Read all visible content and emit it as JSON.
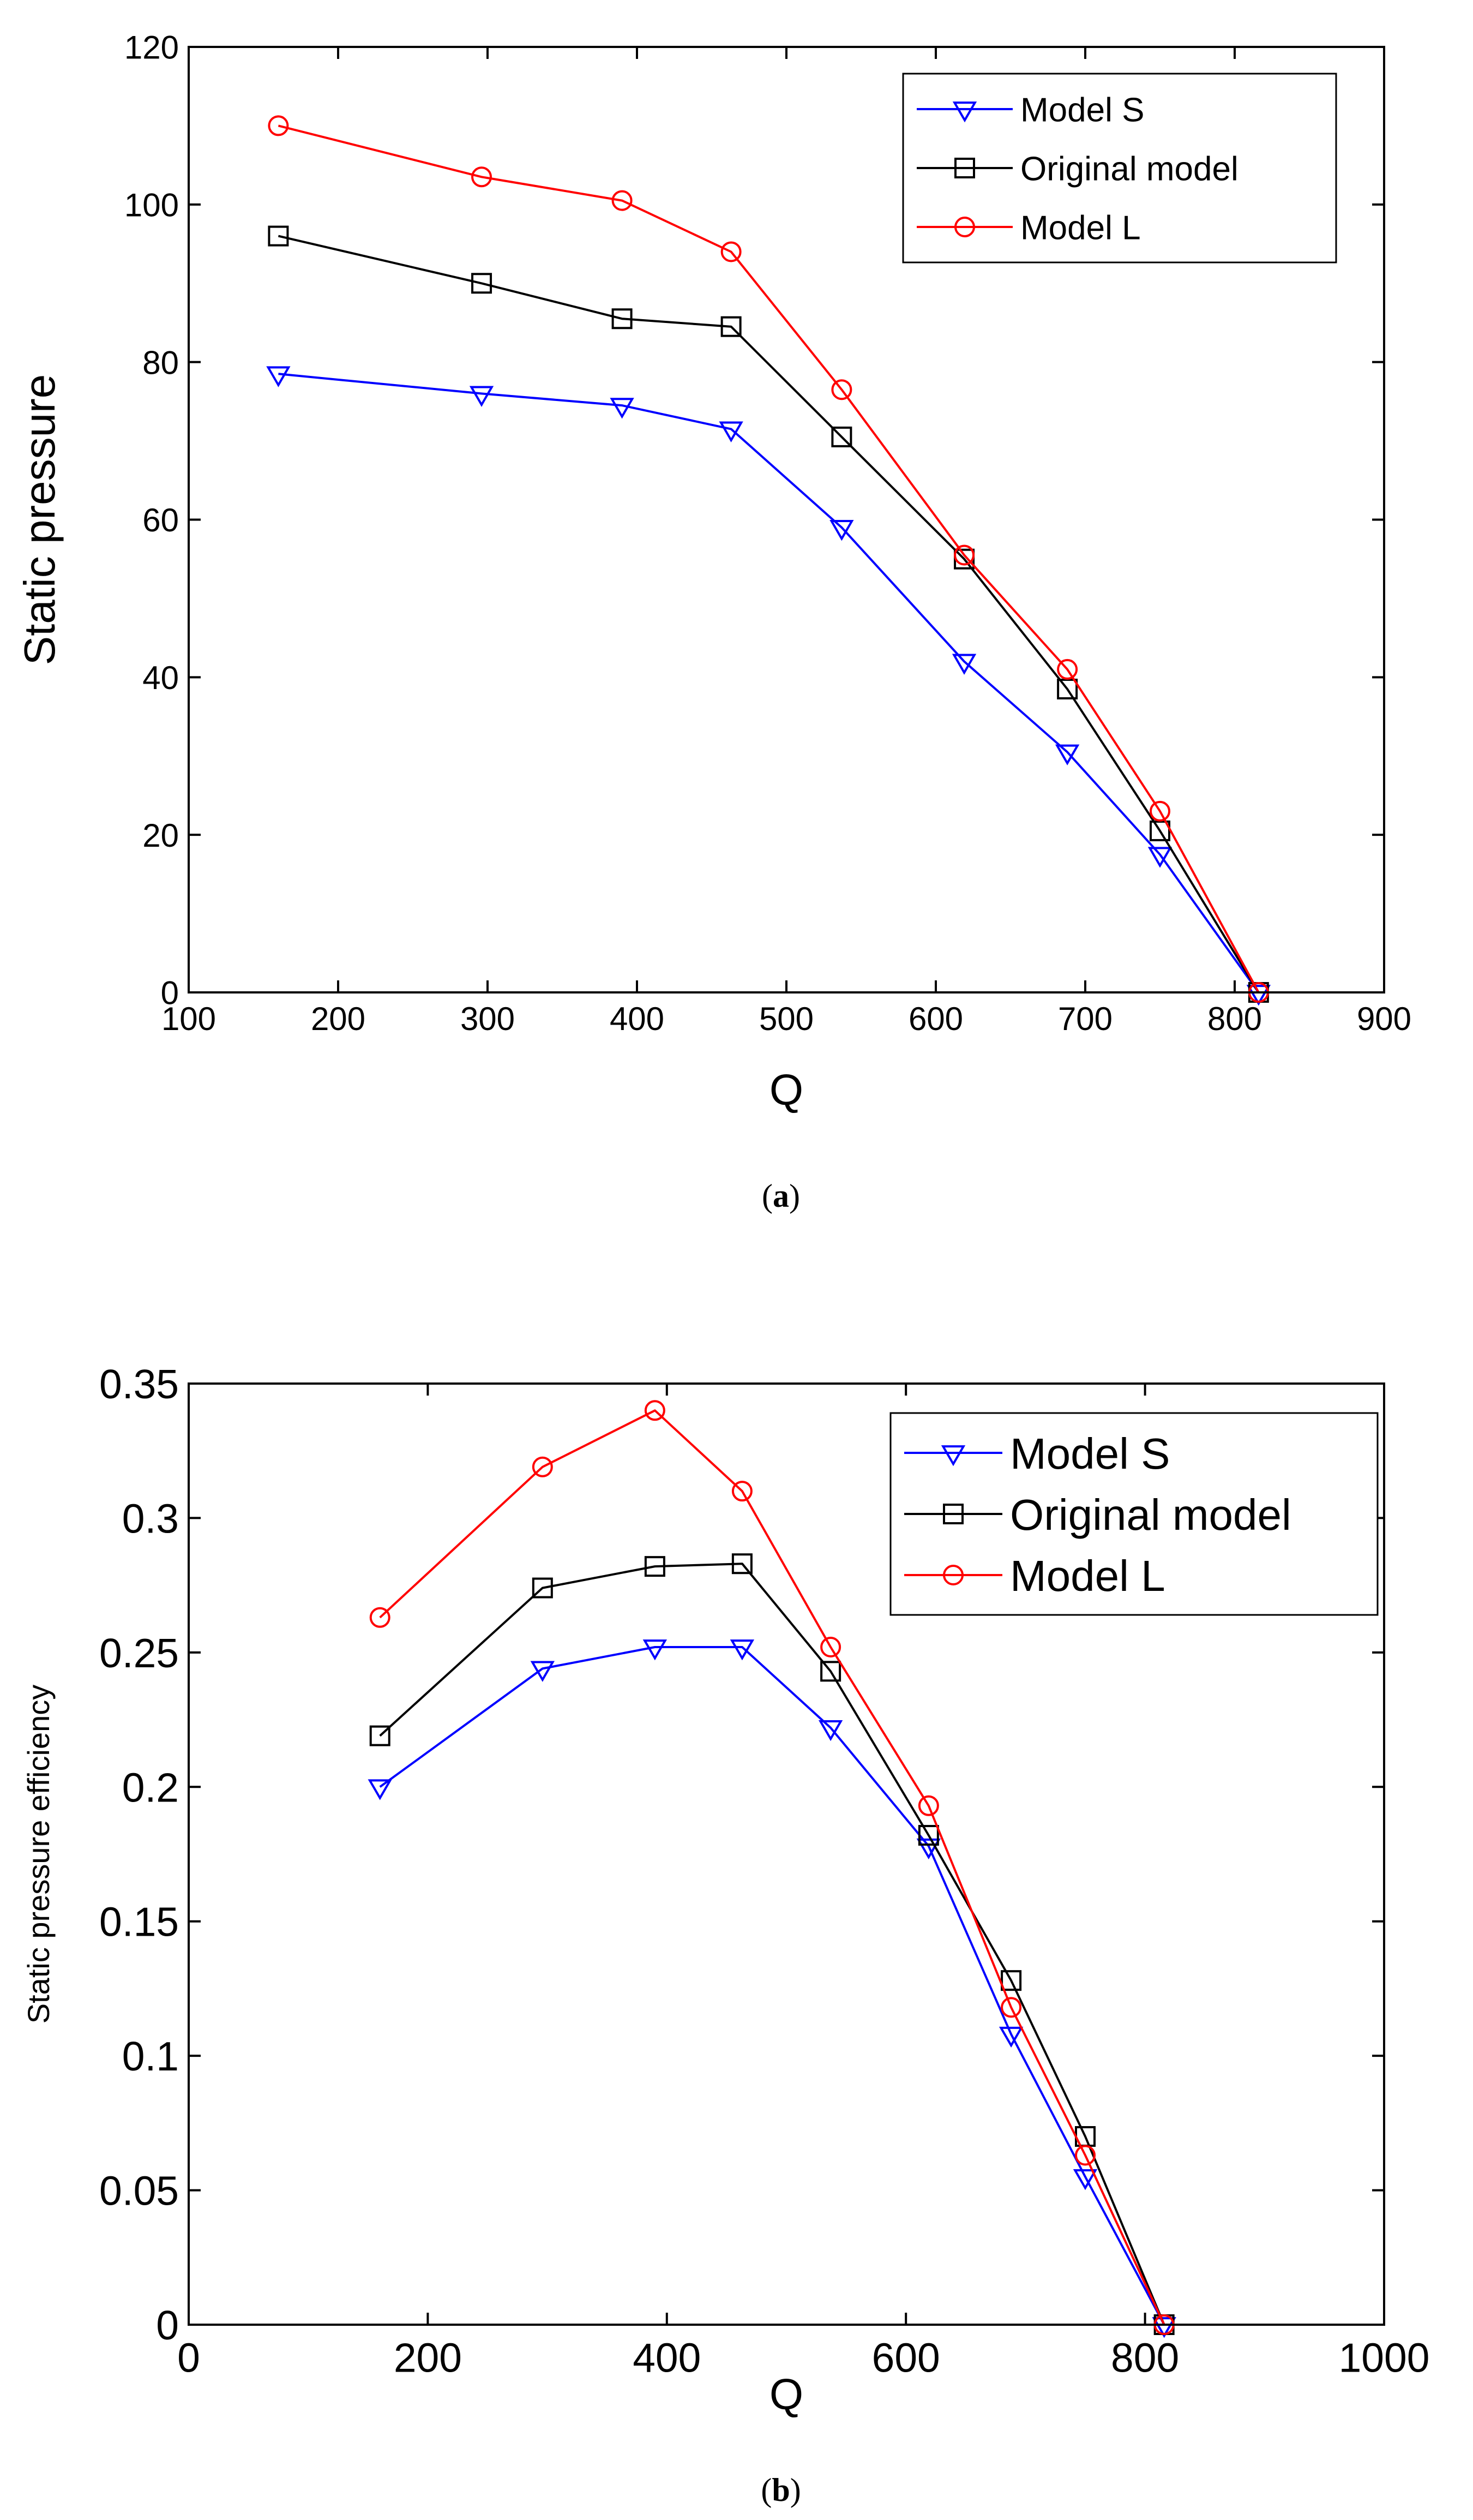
{
  "colors": {
    "model_s": "#0000ff",
    "original": "#000000",
    "model_l": "#ff0000",
    "axis": "#000000",
    "background": "#ffffff"
  },
  "chart_data": [
    {
      "type": "line",
      "caption": "(a)",
      "caption_letter": "a",
      "title": "",
      "xlabel": "Q",
      "ylabel": "Static pressure",
      "xlim": [
        100,
        900
      ],
      "ylim": [
        0,
        120
      ],
      "x_ticks": [
        100,
        200,
        300,
        400,
        500,
        600,
        700,
        800,
        900
      ],
      "y_ticks": [
        0,
        20,
        40,
        60,
        80,
        100,
        120
      ],
      "x_tick_labels": [
        "100",
        "200",
        "300",
        "400",
        "500",
        "600",
        "700",
        "800",
        "900"
      ],
      "y_tick_labels": [
        "0",
        "20",
        "40",
        "60",
        "80",
        "100",
        "120"
      ],
      "grid": false,
      "legend_position": "top-right",
      "series": [
        {
          "name": "Model S",
          "marker": "triangle-down",
          "color_key": "model_s",
          "x": [
            160,
            296,
            390,
            463,
            537,
            619,
            688,
            750,
            816
          ],
          "y": [
            78.5,
            76,
            74.5,
            71.5,
            59,
            42,
            30.5,
            17.5,
            0
          ]
        },
        {
          "name": "Original model",
          "marker": "square",
          "color_key": "original",
          "x": [
            160,
            296,
            390,
            463,
            537,
            619,
            688,
            750,
            816
          ],
          "y": [
            96,
            90,
            85.5,
            84.5,
            70.5,
            55,
            38.5,
            20.5,
            0
          ]
        },
        {
          "name": "Model L",
          "marker": "circle",
          "color_key": "model_l",
          "x": [
            160,
            296,
            390,
            463,
            537,
            619,
            688,
            750,
            816
          ],
          "y": [
            110,
            103.5,
            100.5,
            94,
            76.5,
            55.5,
            41,
            23,
            0
          ]
        }
      ]
    },
    {
      "type": "line",
      "caption": "(b)",
      "caption_letter": "b",
      "title": "",
      "xlabel": "Q",
      "ylabel": "Static pressure efficiency",
      "xlim": [
        0,
        1000
      ],
      "ylim": [
        0,
        0.35
      ],
      "x_ticks": [
        0,
        200,
        400,
        600,
        800,
        1000
      ],
      "y_ticks": [
        0,
        0.05,
        0.1,
        0.15,
        0.2,
        0.25,
        0.3,
        0.35
      ],
      "x_tick_labels": [
        "0",
        "200",
        "400",
        "600",
        "800",
        "1000"
      ],
      "y_tick_labels": [
        "0",
        "0.05",
        "0.1",
        "0.15",
        "0.2",
        "0.25",
        "0.3",
        "0.35"
      ],
      "grid": false,
      "legend_position": "top-right",
      "series": [
        {
          "name": "Model S",
          "marker": "triangle-down",
          "color_key": "model_s",
          "x": [
            160,
            296,
            390,
            463,
            537,
            619,
            688,
            750,
            816
          ],
          "y": [
            0.2,
            0.244,
            0.252,
            0.252,
            0.222,
            0.178,
            0.108,
            0.055,
            0
          ]
        },
        {
          "name": "Original model",
          "marker": "square",
          "color_key": "original",
          "x": [
            160,
            296,
            390,
            463,
            537,
            619,
            688,
            750,
            816
          ],
          "y": [
            0.219,
            0.274,
            0.282,
            0.283,
            0.243,
            0.182,
            0.128,
            0.07,
            0
          ]
        },
        {
          "name": "Model L",
          "marker": "circle",
          "color_key": "model_l",
          "x": [
            160,
            296,
            390,
            463,
            537,
            619,
            688,
            750,
            816
          ],
          "y": [
            0.263,
            0.319,
            0.34,
            0.31,
            0.252,
            0.193,
            0.118,
            0.063,
            0
          ]
        }
      ]
    }
  ]
}
